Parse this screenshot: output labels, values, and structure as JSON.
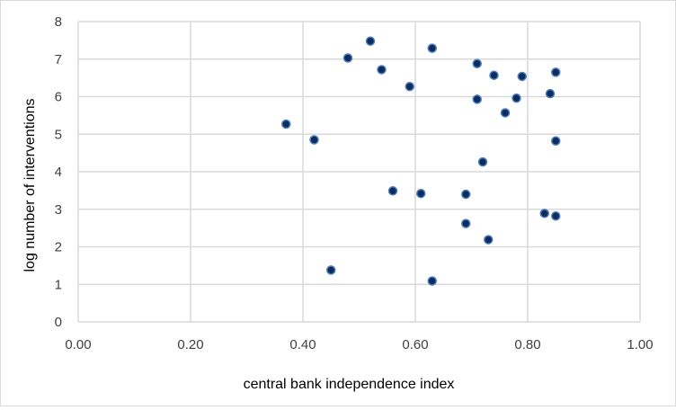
{
  "chart_data": {
    "type": "scatter",
    "title": "",
    "xlabel": "central bank independence index",
    "ylabel": "log number of interventions",
    "xlim": [
      0,
      1
    ],
    "ylim": [
      0,
      8
    ],
    "x_ticks": [
      "0.00",
      "0.20",
      "0.40",
      "0.60",
      "0.80",
      "1.00"
    ],
    "y_ticks": [
      "0",
      "1",
      "2",
      "3",
      "4",
      "5",
      "6",
      "7",
      "8"
    ],
    "grid": true,
    "legend": "none",
    "marker_color": "#0d2d5e",
    "marker_edge_color": "#4f7fc0",
    "points": [
      {
        "x": 0.37,
        "y": 5.27
      },
      {
        "x": 0.42,
        "y": 4.85
      },
      {
        "x": 0.45,
        "y": 1.38
      },
      {
        "x": 0.48,
        "y": 7.03
      },
      {
        "x": 0.52,
        "y": 7.48
      },
      {
        "x": 0.54,
        "y": 6.72
      },
      {
        "x": 0.56,
        "y": 3.49
      },
      {
        "x": 0.59,
        "y": 6.27
      },
      {
        "x": 0.61,
        "y": 3.42
      },
      {
        "x": 0.63,
        "y": 7.29
      },
      {
        "x": 0.63,
        "y": 1.09
      },
      {
        "x": 0.69,
        "y": 3.4
      },
      {
        "x": 0.69,
        "y": 2.62
      },
      {
        "x": 0.71,
        "y": 6.88
      },
      {
        "x": 0.71,
        "y": 5.93
      },
      {
        "x": 0.72,
        "y": 4.26
      },
      {
        "x": 0.73,
        "y": 2.19
      },
      {
        "x": 0.74,
        "y": 6.57
      },
      {
        "x": 0.76,
        "y": 5.57
      },
      {
        "x": 0.78,
        "y": 5.96
      },
      {
        "x": 0.79,
        "y": 6.54
      },
      {
        "x": 0.83,
        "y": 2.89
      },
      {
        "x": 0.84,
        "y": 6.08
      },
      {
        "x": 0.85,
        "y": 4.82
      },
      {
        "x": 0.85,
        "y": 2.82
      },
      {
        "x": 0.85,
        "y": 6.65
      }
    ]
  }
}
